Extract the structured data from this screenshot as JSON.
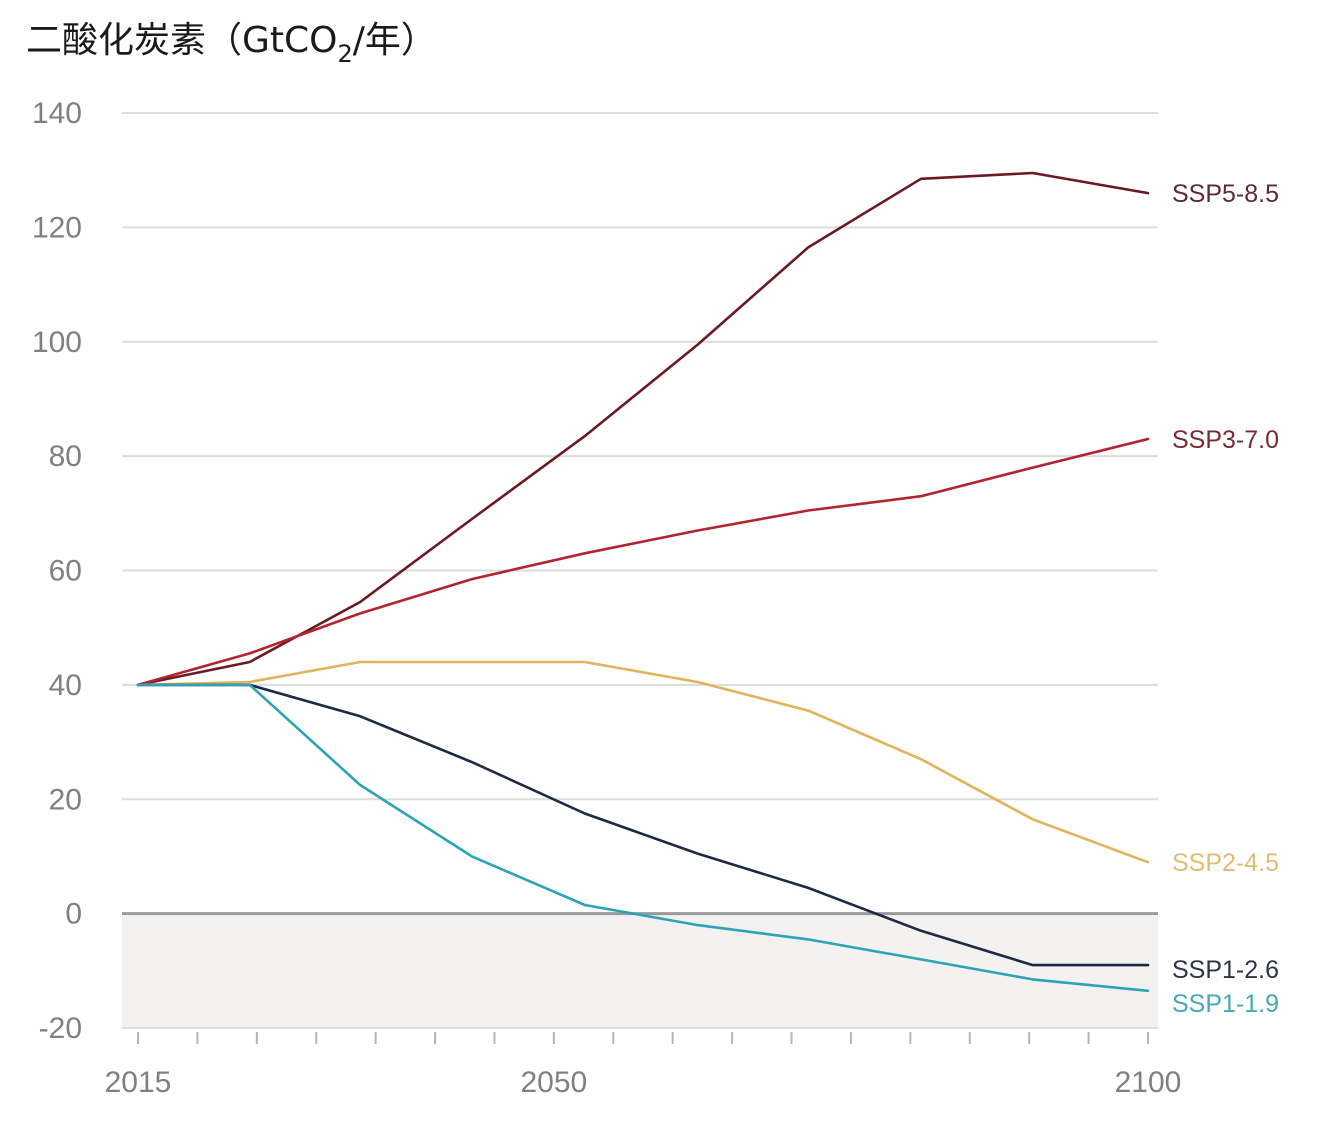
{
  "chart_data": {
    "type": "line",
    "title": "二酸化炭素（GtCO",
    "title_subscript": "2",
    "title_suffix": "/年）",
    "xlabel": "",
    "ylabel": "二酸化炭素（GtCO2/年）",
    "xlim": [
      2015,
      2100
    ],
    "ylim": [
      -20,
      140
    ],
    "grid": true,
    "negative_region_shaded": true,
    "y_ticks": [
      140,
      120,
      100,
      80,
      60,
      40,
      20,
      0,
      -20
    ],
    "y_tick_labels": [
      "140",
      "120",
      "100",
      "80",
      "60",
      "40",
      "20",
      "0",
      "-20"
    ],
    "x_tick_labels": [
      "2015",
      "2050",
      "2100"
    ],
    "x_tick_label_values": [
      2015,
      2050,
      2100
    ],
    "x_minor_tick_step": 5,
    "legend": "direct-labels-right",
    "x": [
      2015,
      2024.4,
      2033.7,
      2043.1,
      2052.6,
      2062.1,
      2071.4,
      2080.9,
      2090.3,
      2100
    ],
    "series": [
      {
        "name": "SSP5-8.5",
        "color": "#6b1a24",
        "label_color": "#5e2a33",
        "values": [
          40,
          44,
          54.5,
          69,
          83.5,
          99.5,
          116.5,
          128.5,
          129.5,
          126
        ]
      },
      {
        "name": "SSP3-7.0",
        "color": "#b3242e",
        "label_color": "#7a2a35",
        "values": [
          40,
          45.5,
          52.5,
          58.5,
          63,
          67,
          70.5,
          73,
          78,
          83
        ]
      },
      {
        "name": "SSP2-4.5",
        "color": "#e0b35c",
        "label_color": "#e2bb72",
        "values": [
          40,
          40.5,
          44,
          44,
          44,
          40.5,
          35.5,
          27,
          16.5,
          9
        ]
      },
      {
        "name": "SSP1-2.6",
        "color": "#1d2a44",
        "label_color": "#2c3547",
        "values": [
          40,
          40,
          34.5,
          26.5,
          17.5,
          10.5,
          4.5,
          -3,
          -9,
          -9
        ]
      },
      {
        "name": "SSP1-1.9",
        "color": "#2ea3b6",
        "label_color": "#44a9b5",
        "values": [
          40,
          40,
          22.5,
          10,
          1.5,
          -2,
          -4.5,
          -8,
          -11.5,
          -13.5
        ]
      }
    ]
  }
}
